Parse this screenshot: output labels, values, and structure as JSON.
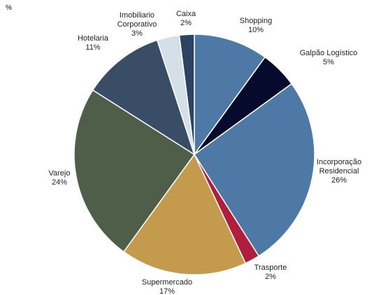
{
  "chart_data": {
    "type": "pie",
    "unit_label": "%",
    "slices": [
      {
        "label": [
          "Shopping"
        ],
        "value": 10,
        "display": "10%",
        "color": "#4e79a7"
      },
      {
        "label": [
          "Galpão Logístico"
        ],
        "value": 5,
        "display": "5%",
        "color": "#060b2e"
      },
      {
        "label": [
          "Incorporação",
          "Residencial"
        ],
        "value": 26,
        "display": "26%",
        "color": "#4e79a7"
      },
      {
        "label": [
          "Trasporte"
        ],
        "value": 2,
        "display": "2%",
        "color": "#b01e3c"
      },
      {
        "label": [
          "Supermercado"
        ],
        "value": 17,
        "display": "17%",
        "color": "#c49a4c"
      },
      {
        "label": [
          "Varejo"
        ],
        "value": 24,
        "display": "24%",
        "color": "#4f5e48"
      },
      {
        "label": [
          "Hotelaria"
        ],
        "value": 11,
        "display": "11%",
        "color": "#3a4d66"
      },
      {
        "label": [
          "Imobiliario",
          "Corporativo"
        ],
        "value": 3,
        "display": "3%",
        "color": "#d5dfe7"
      },
      {
        "label": [
          "Caixa"
        ],
        "value": 2,
        "display": "2%",
        "color": "#2d4363"
      }
    ]
  }
}
